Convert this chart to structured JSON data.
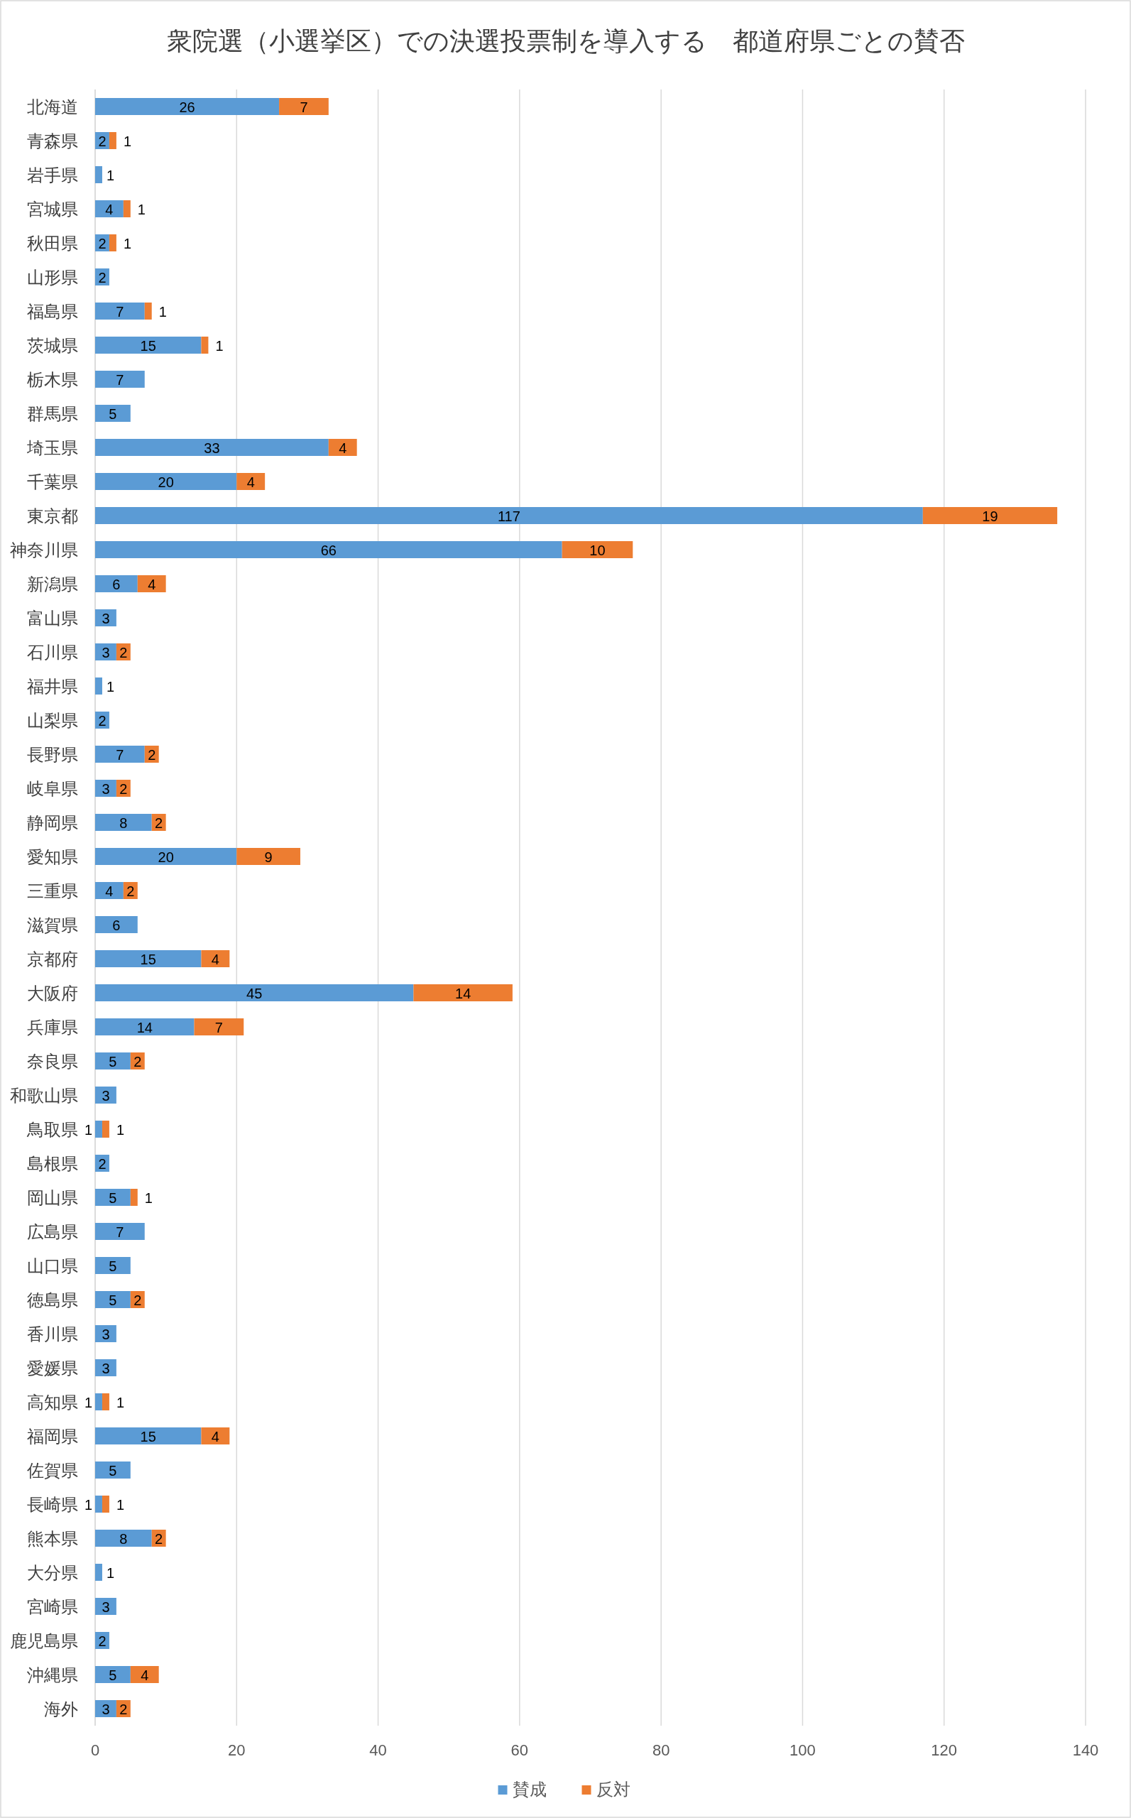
{
  "chart_data": {
    "type": "bar",
    "title": "衆院選（小選挙区）での決選投票制を導入する　都道府県ごとの賛否",
    "orientation": "horizontal",
    "stacked": true,
    "categories": [
      "北海道",
      "青森県",
      "岩手県",
      "宮城県",
      "秋田県",
      "山形県",
      "福島県",
      "茨城県",
      "栃木県",
      "群馬県",
      "埼玉県",
      "千葉県",
      "東京都",
      "神奈川県",
      "新潟県",
      "富山県",
      "石川県",
      "福井県",
      "山梨県",
      "長野県",
      "岐阜県",
      "静岡県",
      "愛知県",
      "三重県",
      "滋賀県",
      "京都府",
      "大阪府",
      "兵庫県",
      "奈良県",
      "和歌山県",
      "鳥取県",
      "島根県",
      "岡山県",
      "広島県",
      "山口県",
      "徳島県",
      "香川県",
      "愛媛県",
      "高知県",
      "福岡県",
      "佐賀県",
      "長崎県",
      "熊本県",
      "大分県",
      "宮崎県",
      "鹿児島県",
      "沖縄県",
      "海外"
    ],
    "series": [
      {
        "name": "賛成",
        "color": "#5b9bd5",
        "values": [
          26,
          2,
          1,
          4,
          2,
          2,
          7,
          15,
          7,
          5,
          33,
          20,
          117,
          66,
          6,
          3,
          3,
          1,
          2,
          7,
          3,
          8,
          20,
          4,
          6,
          15,
          45,
          14,
          5,
          3,
          1,
          2,
          5,
          7,
          5,
          5,
          3,
          3,
          1,
          15,
          5,
          1,
          8,
          1,
          3,
          2,
          5,
          3
        ]
      },
      {
        "name": "反対",
        "color": "#ed7d31",
        "values": [
          7,
          1,
          null,
          1,
          1,
          null,
          1,
          1,
          null,
          null,
          4,
          4,
          19,
          10,
          4,
          null,
          2,
          null,
          null,
          2,
          2,
          2,
          9,
          2,
          null,
          4,
          14,
          7,
          2,
          null,
          1,
          null,
          1,
          null,
          null,
          2,
          null,
          null,
          1,
          4,
          null,
          1,
          2,
          null,
          null,
          null,
          4,
          2
        ]
      }
    ],
    "xlim": [
      0,
      140
    ],
    "xticks": [
      0,
      20,
      40,
      60,
      80,
      100,
      120,
      140
    ],
    "grid": "x",
    "legend": "bottom",
    "data_labels": true
  }
}
